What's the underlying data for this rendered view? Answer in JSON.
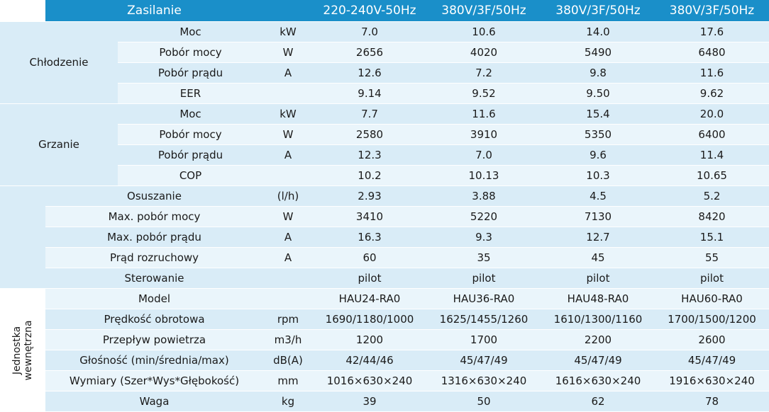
{
  "header": {
    "power_label": "Zasilanie",
    "models_power": [
      "220-240V-50Hz",
      "380V/3F/50Hz",
      "380V/3F/50Hz",
      "380V/3F/50Hz"
    ]
  },
  "cooling": {
    "group_label": "Chłodzenie",
    "rows": [
      {
        "param": "Moc",
        "unit": "kW",
        "values": [
          "7.0",
          "10.6",
          "14.0",
          "17.6"
        ]
      },
      {
        "param": "Pobór mocy",
        "unit": "W",
        "values": [
          "2656",
          "4020",
          "5490",
          "6480"
        ]
      },
      {
        "param": "Pobór prądu",
        "unit": "A",
        "values": [
          "12.6",
          "7.2",
          "9.8",
          "11.6"
        ]
      },
      {
        "param": "EER",
        "unit": "",
        "values": [
          "9.14",
          "9.52",
          "9.50",
          "9.62"
        ]
      }
    ]
  },
  "heating": {
    "group_label": "Grzanie",
    "rows": [
      {
        "param": "Moc",
        "unit": "kW",
        "values": [
          "7.7",
          "11.6",
          "15.4",
          "20.0"
        ]
      },
      {
        "param": "Pobór mocy",
        "unit": "W",
        "values": [
          "2580",
          "3910",
          "5350",
          "6400"
        ]
      },
      {
        "param": "Pobór prądu",
        "unit": "A",
        "values": [
          "12.3",
          "7.0",
          "9.6",
          "11.4"
        ]
      },
      {
        "param": "COP",
        "unit": "",
        "values": [
          "10.2",
          "10.13",
          "10.3",
          "10.65"
        ]
      }
    ]
  },
  "general": {
    "rows": [
      {
        "param": "Osuszanie",
        "unit": "(l/h)",
        "values": [
          "2.93",
          "3.88",
          "4.5",
          "5.2"
        ]
      },
      {
        "param": "Max. pobór mocy",
        "unit": "W",
        "values": [
          "3410",
          "5220",
          "7130",
          "8420"
        ]
      },
      {
        "param": "Max. pobór prądu",
        "unit": "A",
        "values": [
          "16.3",
          "9.3",
          "12.7",
          "15.1"
        ]
      },
      {
        "param": "Prąd rozruchowy",
        "unit": "A",
        "values": [
          "60",
          "35",
          "45",
          "55"
        ]
      },
      {
        "param": "Sterowanie",
        "unit": "",
        "values": [
          "pilot",
          "pilot",
          "pilot",
          "pilot"
        ]
      }
    ]
  },
  "indoor": {
    "group_label_line1": "Jednostka",
    "group_label_line2": "wewnętrzna",
    "rows": [
      {
        "param": "Model",
        "unit": "",
        "values": [
          "HAU24-RA0",
          "HAU36-RA0",
          "HAU48-RA0",
          "HAU60-RA0"
        ]
      },
      {
        "param": "Prędkość obrotowa",
        "unit": "rpm",
        "values": [
          "1690/1180/1000",
          "1625/1455/1260",
          "1610/1300/1160",
          "1700/1500/1200"
        ]
      },
      {
        "param": "Przepływ powietrza",
        "unit": "m3/h",
        "values": [
          "1200",
          "1700",
          "2200",
          "2600"
        ]
      },
      {
        "param": "Głośność (min/średnia/max)",
        "unit": "dB(A)",
        "values": [
          "42/44/46",
          "45/47/49",
          "45/47/49",
          "45/47/49"
        ]
      },
      {
        "param": "Wymiary (Szer*Wys*Głębokość)",
        "unit": "mm",
        "values": [
          "1016×630×240",
          "1316×630×240",
          "1616×630×240",
          "1916×630×240"
        ]
      },
      {
        "param": "Waga",
        "unit": "kg",
        "values": [
          "39",
          "50",
          "62",
          "78"
        ]
      }
    ]
  },
  "colors": {
    "header_bg": "#1a8fc9",
    "row_bg": "#d9ecf7",
    "row_alt_bg": "#eaf5fb"
  }
}
